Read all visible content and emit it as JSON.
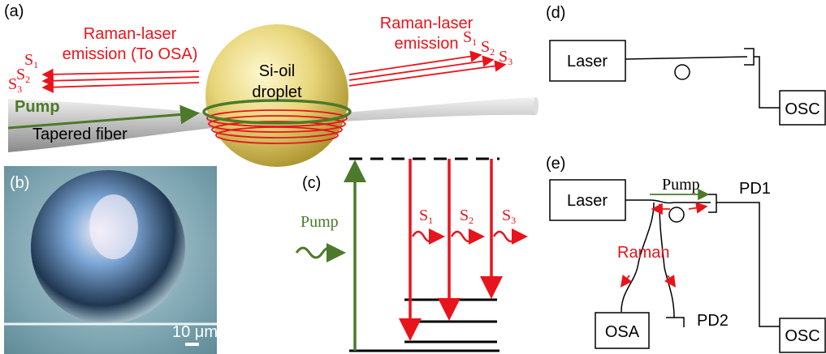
{
  "panel_labels": [
    "(a)",
    "(b)",
    "(c)",
    "(d)",
    "(e)"
  ],
  "panel_a": {
    "left_emission": [
      "Raman-laser",
      "emission (To OSA)"
    ],
    "right_emission": [
      "Raman-laser",
      "emission"
    ],
    "droplet": [
      "Si-oil",
      "droplet"
    ],
    "pump": "Pump",
    "fiber": "Tapered fiber",
    "left_stokes": [
      {
        "base": "S",
        "sub": "1"
      },
      {
        "base": "S",
        "sub": "2"
      },
      {
        "base": "S",
        "sub": "3"
      }
    ],
    "right_stokes": [
      {
        "base": "S",
        "sub": "1"
      },
      {
        "base": "S",
        "sub": "2"
      },
      {
        "base": "S",
        "sub": "3"
      }
    ]
  },
  "panel_b": {
    "scale": "10 μm"
  },
  "panel_c": {
    "pump": "Pump",
    "stokes": [
      {
        "base": "S",
        "sub": "1"
      },
      {
        "base": "S",
        "sub": "2"
      },
      {
        "base": "S",
        "sub": "3"
      }
    ]
  },
  "panel_d": {
    "laser": "Laser",
    "osc": "OSC"
  },
  "panel_e": {
    "laser": "Laser",
    "pump": "Pump",
    "pd1": "PD1",
    "raman": "Raman",
    "osa": "OSA",
    "pd2": "PD2",
    "osc": "OSC"
  }
}
